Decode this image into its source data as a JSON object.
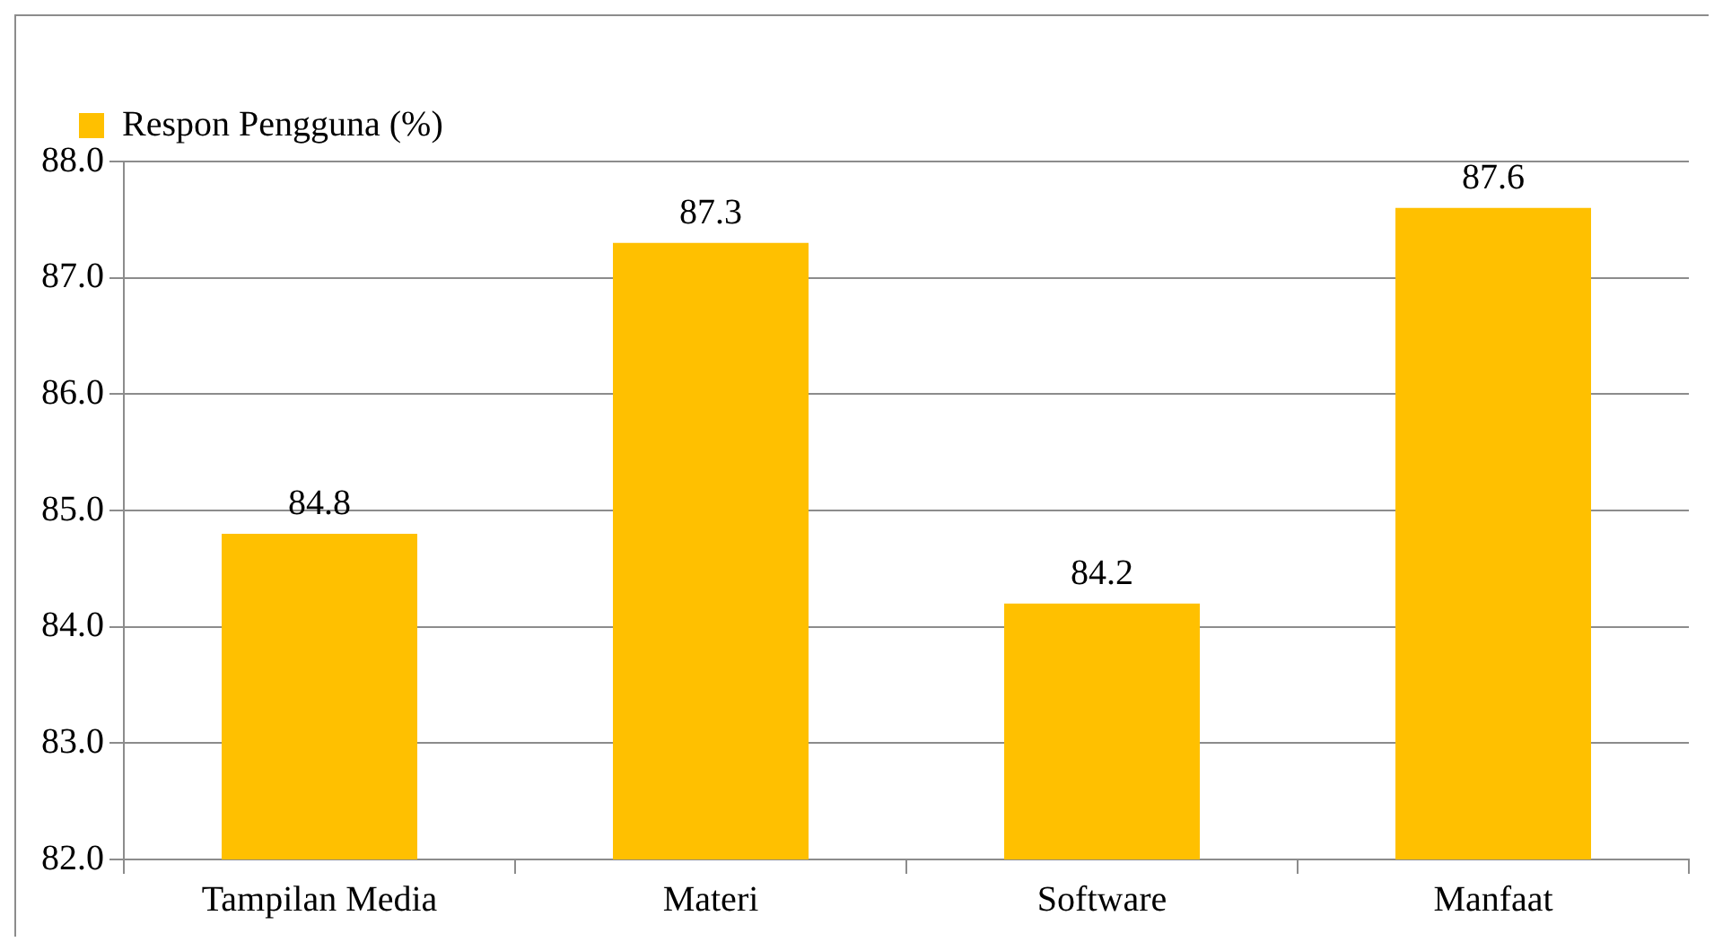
{
  "chart_data": {
    "type": "bar",
    "categories": [
      "Tampilan Media",
      "Materi",
      "Software",
      "Manfaat"
    ],
    "series": [
      {
        "name": "Respon Pengguna (%)",
        "color": "#ffc000",
        "values": [
          84.8,
          87.3,
          84.2,
          87.6
        ]
      }
    ],
    "ylim": [
      82,
      88
    ],
    "yticks": [
      {
        "value": 82,
        "label": "82.0"
      },
      {
        "value": 83,
        "label": "83.0"
      },
      {
        "value": 84,
        "label": "84.0"
      },
      {
        "value": 85,
        "label": "85.0"
      },
      {
        "value": 86,
        "label": "86.0"
      },
      {
        "value": 87,
        "label": "87.0"
      },
      {
        "value": 88,
        "label": "88.0"
      }
    ],
    "grid": "y",
    "legend": "top left",
    "data_labels": true
  }
}
